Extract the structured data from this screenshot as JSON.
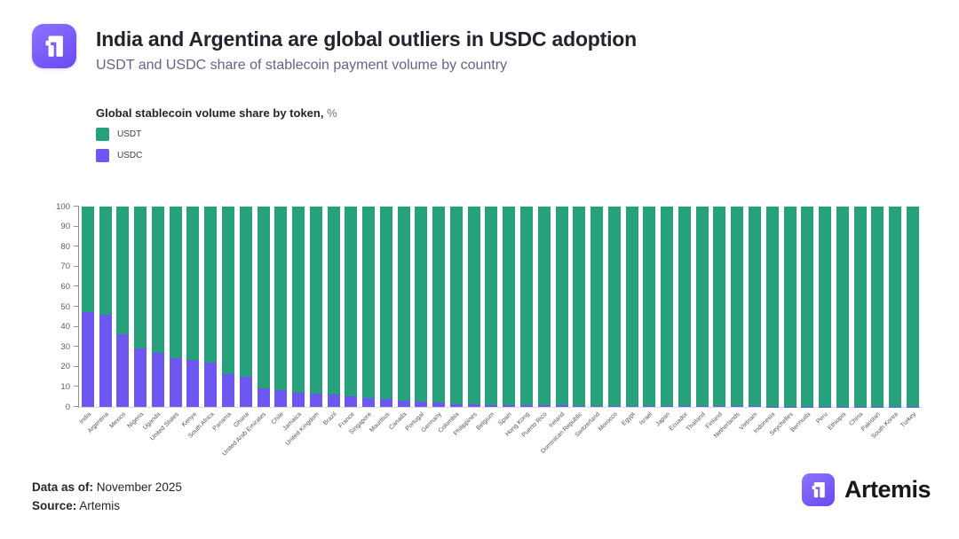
{
  "header": {
    "title": "India and Argentina are global outliers in USDC adoption",
    "subtitle": "USDT and USDC share of stablecoin payment volume by country"
  },
  "legend": {
    "title": "Global stablecoin volume share by token,",
    "title_suffix": " %",
    "items": [
      {
        "label": "USDT",
        "color": "#26a17b"
      },
      {
        "label": "USDC",
        "color": "#6c57f0"
      }
    ]
  },
  "footer": {
    "data_as_of_label": "Data as of:",
    "data_as_of_value": " November 2025",
    "source_label": "Source:",
    "source_value": " Artemis",
    "brand_name": "Artemis"
  },
  "colors": {
    "usdt_green": "#26a17b",
    "usdc_purple": "#6c57f0",
    "logo_purple": "#7a5af8"
  },
  "chart_data": {
    "type": "bar",
    "stacked": true,
    "title": "Global stablecoin volume share by token, %",
    "xlabel": "",
    "ylabel": "",
    "ylim": [
      0,
      100
    ],
    "yticks": [
      0,
      10,
      20,
      30,
      40,
      50,
      60,
      70,
      80,
      90,
      100
    ],
    "grid": false,
    "legend_position": "top-left",
    "categories": [
      "India",
      "Argentina",
      "Mexico",
      "Nigeria",
      "Uganda",
      "United States",
      "Kenya",
      "South Africa",
      "Panama",
      "Ghana",
      "United Arab Emirates",
      "Chile",
      "Jamaica",
      "United Kingdom",
      "Brazil",
      "France",
      "Singapore",
      "Mauritius",
      "Canada",
      "Portugal",
      "Germany",
      "Colombia",
      "Philippines",
      "Belgium",
      "Spain",
      "Hong Kong",
      "Puerto Rico",
      "Ireland",
      "Dominican Republic",
      "Switzerland",
      "Morocco",
      "Egypt",
      "Israel",
      "Japan",
      "Ecuador",
      "Thailand",
      "Finland",
      "Netherlands",
      "Vietnam",
      "Indonesia",
      "Seychelles",
      "Bermuda",
      "Peru",
      "Ethiopia",
      "China",
      "Pakistan",
      "South Korea",
      "Turkey"
    ],
    "series": [
      {
        "name": "USDC",
        "color": "#6c57f0",
        "values": [
          47.5,
          46,
          36.5,
          29,
          27,
          24.5,
          23.5,
          22,
          16.5,
          15,
          9.5,
          8.5,
          7,
          6.5,
          6,
          5.5,
          4.5,
          4,
          3,
          2.5,
          2,
          1.5,
          1.2,
          1,
          1,
          0.8,
          0.8,
          0.7,
          0.6,
          0.5,
          0.5,
          0.5,
          0.5,
          0.4,
          0.4,
          0.3,
          0.3,
          0.3,
          0.3,
          0.2,
          0.2,
          0.2,
          0.2,
          0.1,
          0.1,
          0.1,
          0.1,
          0.1
        ]
      },
      {
        "name": "USDT",
        "color": "#26a17b",
        "values": [
          52.5,
          54,
          63.5,
          71,
          73,
          75.5,
          76.5,
          78,
          83.5,
          85,
          90.5,
          91.5,
          93,
          93.5,
          94,
          94.5,
          95.5,
          96,
          97,
          97.5,
          98,
          98.5,
          98.8,
          99,
          99,
          99.2,
          99.2,
          99.3,
          99.4,
          99.5,
          99.5,
          99.5,
          99.5,
          99.6,
          99.6,
          99.7,
          99.7,
          99.7,
          99.7,
          99.8,
          99.8,
          99.8,
          99.8,
          99.9,
          99.9,
          99.9,
          99.9,
          99.9
        ]
      }
    ]
  }
}
